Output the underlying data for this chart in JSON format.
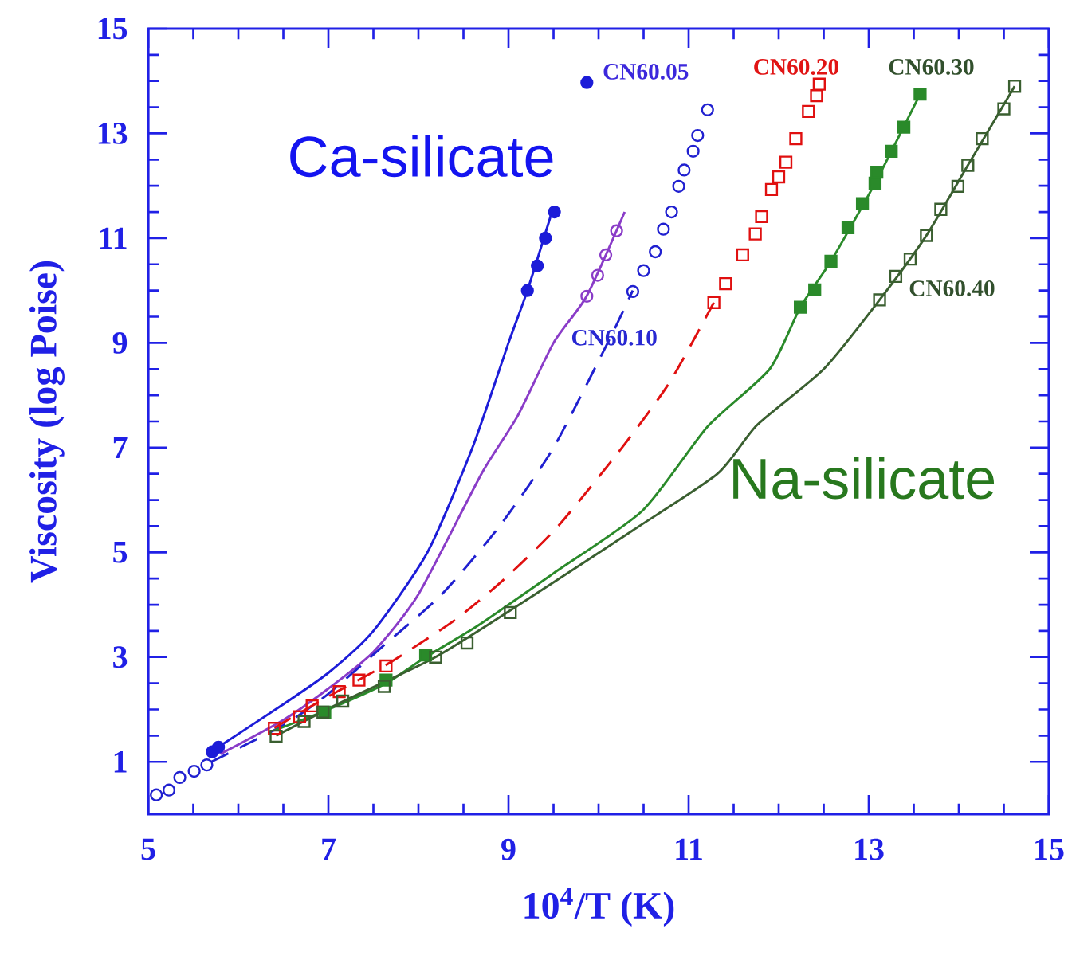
{
  "chart_data": {
    "type": "line",
    "xlabel": "10$^{4}$/T (K)",
    "ylabel": "Viscosity (log Poise)",
    "xlim": [
      5,
      15
    ],
    "ylim": [
      0,
      15
    ],
    "xticks": [
      5,
      7,
      9,
      11,
      13,
      15
    ],
    "yticks": [
      1,
      3,
      5,
      7,
      9,
      11,
      13,
      15
    ],
    "annotations": [
      "CN60.05",
      "CN60.10",
      "CN60.20",
      "CN60.30",
      "CN60.40",
      "Ca-silicate",
      "Na-silicate"
    ],
    "series": [
      {
        "color": "#1c1cd8",
        "line_style": "solid",
        "x": [
          5.75,
          6.5,
          7.0,
          7.5,
          8.1,
          8.6,
          9.0,
          9.21,
          9.5
        ],
        "values": [
          1.25,
          2.1,
          2.7,
          3.5,
          5.0,
          7.0,
          9.0,
          10.0,
          11.6
        ]
      },
      {
        "type": "scatter",
        "color": "#1c1cd8",
        "marker": "circle",
        "x": [
          5.71,
          5.78,
          9.21,
          9.32,
          9.41,
          9.51,
          9.87
        ],
        "values": [
          1.19,
          1.28,
          10.0,
          10.47,
          11.0,
          11.5,
          13.97
        ]
      },
      {
        "color": "#8a3cc8",
        "line_style": "solid",
        "x": [
          5.8,
          6.5,
          7.0,
          7.5,
          8.0,
          8.7,
          9.1,
          9.5,
          9.87,
          10.29
        ],
        "values": [
          1.15,
          1.8,
          2.4,
          3.1,
          4.2,
          6.5,
          7.6,
          9.0,
          9.9,
          11.5
        ]
      },
      {
        "type": "scatter",
        "color": "#8a3cc8",
        "marker": "circle",
        "x": [
          9.87,
          9.99,
          10.08,
          10.2
        ],
        "values": [
          9.89,
          10.29,
          10.68,
          11.14
        ]
      },
      {
        "color": "#2020d0",
        "line_style": "dashed",
        "x": [
          5.7,
          6.5,
          7.0,
          7.6,
          8.26,
          8.9,
          9.5,
          10.13,
          10.38
        ],
        "values": [
          1.0,
          1.7,
          2.3,
          3.2,
          4.2,
          5.5,
          7.0,
          9.1,
          10.0
        ]
      },
      {
        "type": "scatter",
        "color": "#2020d0",
        "marker": "circle",
        "x": [
          5.09,
          5.23,
          5.35,
          5.51,
          5.65,
          10.38,
          10.5,
          10.63,
          10.72,
          10.81,
          10.89,
          10.95,
          11.05,
          11.1,
          11.21
        ],
        "values": [
          0.37,
          0.46,
          0.7,
          0.82,
          0.94,
          9.98,
          10.38,
          10.74,
          11.17,
          11.5,
          11.99,
          12.3,
          12.66,
          12.96,
          13.45
        ]
      },
      {
        "color": "#e01010",
        "line_style": "dashed",
        "x": [
          6.4,
          7.0,
          7.64,
          7.9,
          8.43,
          8.96,
          9.55,
          10.26,
          10.79,
          11.28
        ],
        "values": [
          1.65,
          2.25,
          2.85,
          3.13,
          3.74,
          4.5,
          5.5,
          7.0,
          8.25,
          9.77
        ]
      },
      {
        "type": "scatter",
        "color": "#e01010",
        "marker": "square",
        "x": [
          6.4,
          6.68,
          6.82,
          7.12,
          7.34,
          7.64,
          11.28,
          11.41,
          11.6,
          11.74,
          11.81,
          11.92,
          12.0,
          12.08,
          12.19,
          12.33,
          12.42,
          12.45
        ],
        "values": [
          1.64,
          1.86,
          2.07,
          2.34,
          2.56,
          2.83,
          9.77,
          10.13,
          10.68,
          11.08,
          11.41,
          11.93,
          12.17,
          12.45,
          12.9,
          13.42,
          13.72,
          13.94
        ]
      },
      {
        "color": "#2a8a2a",
        "line_style": "solid",
        "x": [
          6.4,
          7.0,
          7.64,
          8.08,
          8.66,
          9.5,
          10.49,
          11.21,
          11.9,
          12.24,
          12.58,
          13.07,
          13.57
        ],
        "values": [
          1.6,
          2.0,
          2.5,
          3.0,
          3.6,
          4.6,
          5.8,
          7.4,
          8.5,
          9.68,
          10.56,
          12.05,
          13.75
        ]
      },
      {
        "type": "scatter",
        "color": "#2a8a2a",
        "marker": "square",
        "x": [
          6.96,
          7.64,
          8.08,
          12.24,
          12.4,
          12.58,
          12.77,
          12.93,
          13.07,
          13.09,
          13.25,
          13.39,
          13.57
        ],
        "values": [
          1.95,
          2.56,
          3.04,
          9.68,
          10.01,
          10.56,
          11.2,
          11.66,
          12.05,
          12.26,
          12.66,
          13.12,
          13.75
        ]
      },
      {
        "color": "#3a5f30",
        "line_style": "solid",
        "x": [
          6.42,
          7.16,
          8.19,
          9.19,
          10.38,
          11.32,
          11.76,
          12.5,
          13.12,
          13.64,
          14.1,
          14.62
        ],
        "values": [
          1.5,
          2.15,
          3.0,
          4.08,
          5.42,
          6.5,
          7.43,
          8.5,
          9.82,
          11.05,
          12.39,
          13.9
        ]
      },
      {
        "type": "scatter",
        "color": "#3a5f30",
        "marker": "square",
        "x": [
          6.42,
          6.73,
          6.94,
          7.16,
          7.62,
          8.19,
          8.54,
          9.02,
          13.12,
          13.3,
          13.46,
          13.64,
          13.8,
          13.99,
          14.1,
          14.26,
          14.5,
          14.62
        ],
        "values": [
          1.49,
          1.77,
          1.95,
          2.16,
          2.44,
          3.0,
          3.27,
          3.85,
          9.82,
          10.27,
          10.6,
          11.05,
          11.55,
          11.99,
          12.39,
          12.9,
          13.47,
          13.9
        ]
      }
    ]
  }
}
